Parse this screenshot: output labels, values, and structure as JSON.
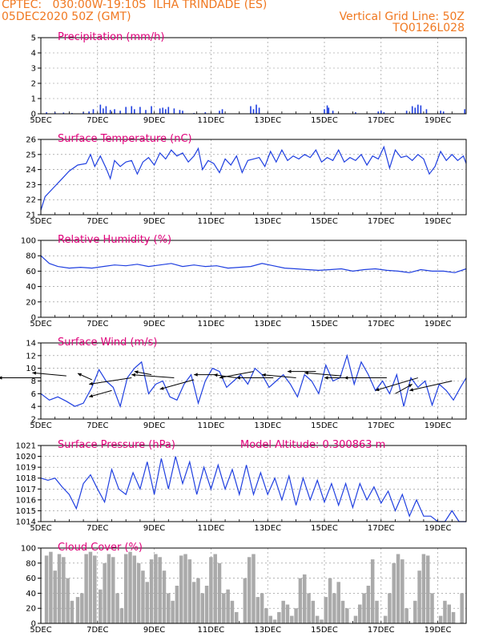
{
  "header": {
    "left_line1": "CPTEC:   030:00W-19:10S  ILHA TRINDADE (ES)",
    "left_line2": "05DEC2020 50Z (GMT)",
    "right_line1": "Vertical Grid Line: 50Z",
    "right_line2": "TQ0126L028"
  },
  "colors": {
    "line": "#1f3fe0",
    "bar": "#1f3fe0",
    "cloud": "#aaaaaa",
    "title": "#e0007a",
    "header": "#f07820"
  },
  "x_tick_labels": [
    "5DEC",
    "7DEC",
    "9DEC",
    "11DEC",
    "13DEC",
    "15DEC",
    "17DEC",
    "19DEC"
  ],
  "x_tick_days": [
    0,
    2,
    4,
    6,
    8,
    10,
    12,
    14
  ],
  "chart_data": [
    {
      "type": "bar",
      "title": "Precipitation (mm/h)",
      "ylim": [
        0,
        5
      ],
      "yticks": [
        0,
        1,
        2,
        3,
        4,
        5
      ],
      "xlim": [
        0,
        15
      ],
      "x": [
        0.2,
        0.5,
        0.8,
        1.1,
        1.5,
        1.7,
        1.85,
        2.1,
        2.2,
        2.3,
        2.45,
        2.6,
        2.8,
        3.0,
        3.2,
        3.3,
        3.5,
        3.7,
        3.9,
        4.2,
        4.3,
        4.4,
        4.5,
        4.7,
        4.9,
        5.0,
        5.4,
        5.8,
        6.3,
        6.4,
        7.4,
        7.5,
        7.6,
        7.7,
        10.0,
        10.1,
        10.15,
        10.3,
        11.1,
        11.9,
        12.0,
        12.1,
        12.9,
        13.1,
        13.2,
        13.3,
        13.4,
        13.6,
        14.1,
        14.2,
        14.95
      ],
      "values": [
        0.1,
        0.08,
        0.08,
        0.05,
        0.1,
        0.15,
        0.3,
        0.6,
        0.35,
        0.5,
        0.25,
        0.3,
        0.2,
        0.45,
        0.5,
        0.3,
        0.45,
        0.25,
        0.5,
        0.35,
        0.4,
        0.3,
        0.45,
        0.35,
        0.25,
        0.2,
        0.05,
        0.1,
        0.2,
        0.3,
        0.5,
        0.3,
        0.6,
        0.4,
        0.3,
        0.55,
        0.4,
        0.2,
        0.1,
        0.15,
        0.2,
        0.1,
        0.2,
        0.5,
        0.4,
        0.6,
        0.55,
        0.3,
        0.2,
        0.15,
        0.3
      ]
    },
    {
      "type": "line",
      "title": "Surface Temperature (nC)",
      "ylim": [
        21,
        26
      ],
      "yticks": [
        21,
        22,
        23,
        24,
        25,
        26
      ],
      "xlim": [
        0,
        15
      ],
      "x": [
        0,
        0.15,
        0.4,
        0.7,
        1.0,
        1.3,
        1.6,
        1.75,
        1.9,
        2.1,
        2.3,
        2.45,
        2.6,
        2.8,
        3.0,
        3.2,
        3.4,
        3.6,
        3.8,
        4.0,
        4.2,
        4.4,
        4.6,
        4.8,
        5.0,
        5.2,
        5.4,
        5.55,
        5.7,
        5.9,
        6.1,
        6.3,
        6.5,
        6.7,
        6.9,
        7.1,
        7.3,
        7.5,
        7.7,
        7.9,
        8.1,
        8.3,
        8.5,
        8.7,
        8.9,
        9.1,
        9.3,
        9.5,
        9.7,
        9.9,
        10.1,
        10.3,
        10.5,
        10.7,
        10.9,
        11.1,
        11.3,
        11.5,
        11.7,
        11.9,
        12.1,
        12.3,
        12.5,
        12.7,
        12.9,
        13.1,
        13.3,
        13.5,
        13.7,
        13.9,
        14.1,
        14.3,
        14.5,
        14.7,
        14.9,
        15.0
      ],
      "values": [
        21.3,
        22.2,
        22.7,
        23.3,
        23.9,
        24.3,
        24.4,
        25.0,
        24.2,
        24.9,
        24.1,
        23.4,
        24.6,
        24.2,
        24.5,
        24.6,
        23.7,
        24.5,
        24.8,
        24.3,
        25.1,
        24.7,
        25.3,
        24.9,
        25.1,
        24.5,
        24.9,
        25.4,
        24.0,
        24.6,
        24.4,
        23.8,
        24.7,
        24.3,
        24.9,
        23.8,
        24.6,
        24.7,
        24.8,
        24.2,
        25.2,
        24.5,
        25.3,
        24.6,
        24.9,
        24.7,
        25.0,
        24.8,
        25.3,
        24.5,
        24.8,
        24.6,
        25.3,
        24.5,
        24.8,
        24.6,
        25.0,
        24.3,
        24.9,
        24.7,
        25.5,
        24.1,
        25.3,
        24.8,
        24.9,
        24.6,
        25.0,
        24.7,
        23.7,
        24.2,
        25.2,
        24.6,
        25.0,
        24.6,
        24.9,
        24.4
      ]
    },
    {
      "type": "line",
      "title": "Relative Humidity (%)",
      "ylim": [
        0,
        100
      ],
      "yticks": [
        0,
        20,
        40,
        60,
        80,
        100
      ],
      "xlim": [
        0,
        15
      ],
      "x": [
        0,
        0.3,
        0.6,
        1.0,
        1.4,
        1.8,
        2.2,
        2.6,
        3.0,
        3.4,
        3.8,
        4.2,
        4.6,
        5.0,
        5.4,
        5.8,
        6.2,
        6.6,
        7.0,
        7.4,
        7.8,
        8.2,
        8.6,
        9.0,
        9.4,
        9.8,
        10.2,
        10.6,
        11.0,
        11.4,
        11.8,
        12.2,
        12.6,
        13.0,
        13.4,
        13.8,
        14.2,
        14.6,
        15.0
      ],
      "values": [
        80,
        70,
        66,
        64,
        65,
        64,
        66,
        68,
        67,
        69,
        66,
        68,
        70,
        66,
        68,
        66,
        67,
        64,
        65,
        66,
        70,
        67,
        64,
        63,
        62,
        61,
        62,
        63,
        60,
        62,
        63,
        61,
        60,
        58,
        62,
        60,
        60,
        58,
        63
      ]
    },
    {
      "type": "line",
      "title": "Surface Wind (m/s)",
      "ylim": [
        2,
        14
      ],
      "yticks": [
        2,
        4,
        6,
        8,
        10,
        12,
        14
      ],
      "xlim": [
        0,
        15
      ],
      "x": [
        0,
        0.3,
        0.6,
        0.9,
        1.2,
        1.5,
        1.8,
        2.05,
        2.3,
        2.55,
        2.8,
        3.05,
        3.3,
        3.55,
        3.8,
        4.05,
        4.3,
        4.55,
        4.8,
        5.05,
        5.3,
        5.55,
        5.8,
        6.05,
        6.3,
        6.55,
        6.8,
        7.05,
        7.3,
        7.55,
        7.8,
        8.05,
        8.3,
        8.55,
        8.8,
        9.05,
        9.3,
        9.55,
        9.8,
        10.05,
        10.3,
        10.55,
        10.8,
        11.05,
        11.3,
        11.55,
        11.8,
        12.05,
        12.3,
        12.55,
        12.8,
        13.05,
        13.3,
        13.55,
        13.8,
        14.05,
        14.3,
        14.55,
        14.8,
        15.0
      ],
      "values": [
        6,
        5,
        5.5,
        4.8,
        4,
        4.5,
        7,
        9.8,
        8,
        7,
        4,
        8.5,
        10,
        11,
        6,
        7.5,
        8,
        5.5,
        5,
        7.5,
        9,
        4.5,
        8,
        10,
        9.5,
        7,
        8,
        9,
        7.5,
        10,
        9,
        7,
        8,
        9,
        7.5,
        5.5,
        9,
        8,
        6,
        10.5,
        8,
        8.5,
        12,
        7.5,
        11,
        9,
        6.5,
        8,
        6,
        9,
        4,
        8.5,
        7,
        8,
        4.2,
        7.5,
        6.5,
        5,
        7,
        8.5
      ],
      "barbs_note": "wind direction arrows overlaid"
    },
    {
      "type": "line",
      "title": "Surface Pressure (hPa)",
      "annotation": "Model Altitude: 0.300863 m",
      "ylim": [
        1014,
        1021
      ],
      "yticks": [
        1014,
        1015,
        1016,
        1017,
        1018,
        1019,
        1020,
        1021
      ],
      "xlim": [
        0,
        15
      ],
      "x": [
        0,
        0.25,
        0.5,
        0.75,
        1.0,
        1.25,
        1.5,
        1.75,
        2.0,
        2.25,
        2.5,
        2.75,
        3.0,
        3.25,
        3.5,
        3.75,
        4.0,
        4.25,
        4.5,
        4.75,
        5.0,
        5.25,
        5.5,
        5.75,
        6.0,
        6.25,
        6.5,
        6.75,
        7.0,
        7.25,
        7.5,
        7.75,
        8.0,
        8.25,
        8.5,
        8.75,
        9.0,
        9.25,
        9.5,
        9.75,
        10.0,
        10.25,
        10.5,
        10.75,
        11.0,
        11.25,
        11.5,
        11.75,
        12.0,
        12.25,
        12.5,
        12.75,
        13.0,
        13.25,
        13.5,
        13.75,
        14.0,
        14.25,
        14.5,
        14.75,
        15.0
      ],
      "values": [
        1018,
        1017.8,
        1018,
        1017.2,
        1016.5,
        1015.2,
        1017.5,
        1018.3,
        1017,
        1015.8,
        1018.8,
        1017,
        1016.5,
        1018.5,
        1017,
        1019.5,
        1016.5,
        1019.8,
        1017,
        1020,
        1017.5,
        1019.5,
        1016.5,
        1019,
        1017,
        1019.2,
        1017,
        1018.8,
        1016.5,
        1019.2,
        1016.5,
        1018.5,
        1016.5,
        1018,
        1016,
        1018.2,
        1015.5,
        1018,
        1016,
        1017.8,
        1015.8,
        1017.5,
        1015.5,
        1017.5,
        1015.3,
        1017.5,
        1016,
        1017.2,
        1015.7,
        1016.8,
        1015,
        1016.5,
        1014.5,
        1016,
        1014.5,
        1014.5,
        1014.0,
        1014.0,
        1015.0,
        1014.0,
        1014.0
      ]
    },
    {
      "type": "bar",
      "title": "Cloud Cover (%)",
      "ylim": [
        0,
        100
      ],
      "yticks": [
        0,
        20,
        40,
        60,
        80,
        100
      ],
      "xlim": [
        0,
        15
      ],
      "x": [
        0.2,
        0.35,
        0.5,
        0.65,
        0.8,
        0.95,
        1.1,
        1.3,
        1.45,
        1.6,
        1.75,
        1.9,
        2.1,
        2.25,
        2.4,
        2.55,
        2.7,
        2.85,
        3.0,
        3.15,
        3.3,
        3.45,
        3.6,
        3.75,
        3.9,
        4.05,
        4.2,
        4.35,
        4.5,
        4.65,
        4.8,
        4.95,
        5.1,
        5.25,
        5.4,
        5.55,
        5.7,
        5.85,
        6.0,
        6.15,
        6.3,
        6.45,
        6.6,
        6.75,
        6.9,
        7.05,
        7.2,
        7.35,
        7.5,
        7.65,
        7.8,
        7.95,
        8.1,
        8.25,
        8.4,
        8.55,
        8.7,
        8.85,
        9.0,
        9.15,
        9.3,
        9.45,
        9.6,
        9.75,
        9.9,
        10.05,
        10.2,
        10.35,
        10.5,
        10.65,
        10.8,
        10.95,
        11.1,
        11.25,
        11.4,
        11.55,
        11.7,
        11.85,
        12.0,
        12.15,
        12.3,
        12.45,
        12.6,
        12.75,
        12.9,
        13.05,
        13.2,
        13.35,
        13.5,
        13.65,
        13.8,
        13.95,
        14.1,
        14.25,
        14.4,
        14.55,
        14.7,
        14.85
      ],
      "values": [
        90,
        95,
        70,
        92,
        88,
        60,
        30,
        35,
        40,
        92,
        95,
        90,
        45,
        80,
        92,
        88,
        40,
        20,
        92,
        95,
        90,
        80,
        70,
        55,
        85,
        92,
        88,
        70,
        40,
        30,
        50,
        90,
        92,
        85,
        55,
        60,
        40,
        50,
        88,
        92,
        80,
        40,
        45,
        30,
        15,
        0,
        60,
        88,
        92,
        35,
        40,
        20,
        10,
        5,
        15,
        30,
        25,
        10,
        20,
        60,
        65,
        40,
        30,
        10,
        5,
        35,
        60,
        40,
        55,
        30,
        20,
        0,
        10,
        25,
        40,
        50,
        85,
        30,
        0,
        10,
        40,
        80,
        92,
        85,
        20,
        0,
        30,
        70,
        92,
        90,
        40,
        0,
        10,
        30,
        25,
        15,
        0,
        40
      ]
    }
  ]
}
